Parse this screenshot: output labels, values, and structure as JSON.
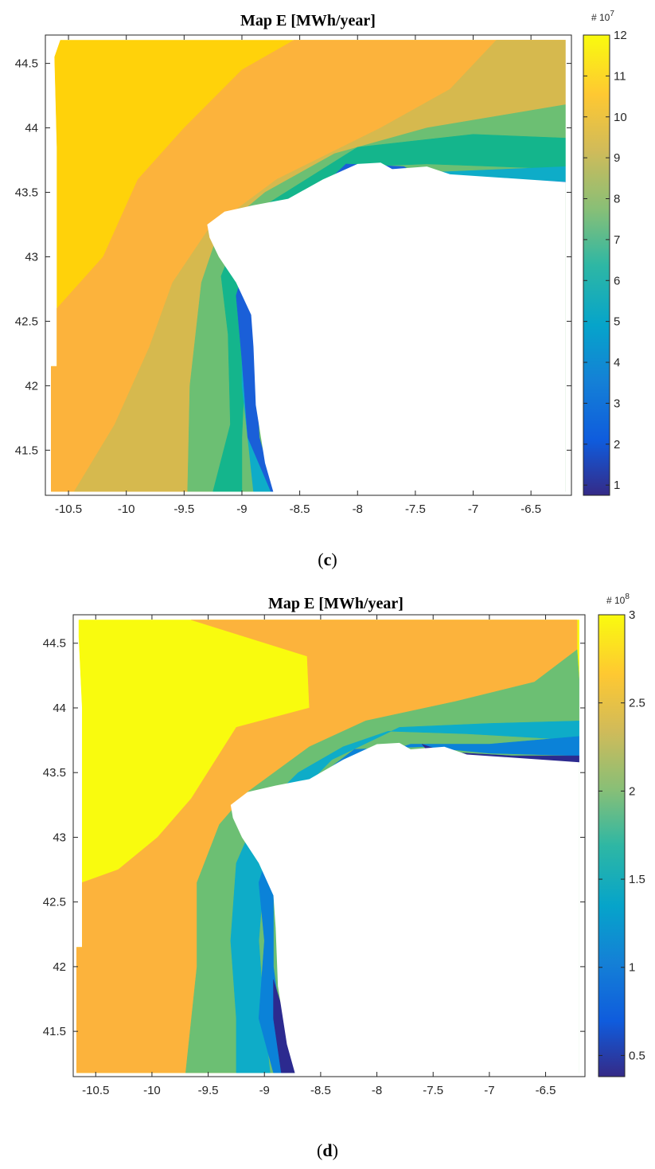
{
  "chart_data": [
    {
      "type": "heatmap",
      "title": "Map E [MWh/year]",
      "caption": "c",
      "xlim": [
        -10.7,
        -6.15
      ],
      "ylim": [
        41.15,
        44.72
      ],
      "xticks": [
        -10.5,
        -10,
        -9.5,
        -9,
        -8.5,
        -8,
        -7.5,
        -7,
        -6.5
      ],
      "yticks": [
        41.5,
        42,
        42.5,
        43,
        43.5,
        44,
        44.5
      ],
      "colorbar": {
        "range": [
          0.75,
          12
        ],
        "ticks": [
          1,
          2,
          3,
          4,
          5,
          6,
          7,
          8,
          9,
          10,
          11,
          12
        ],
        "tick_labels": [
          "1",
          "2",
          "3",
          "4",
          "5",
          "6",
          "7",
          "8",
          "9",
          "10",
          "11",
          "12"
        ],
        "exponent_label": "# 10",
        "exponent": "7",
        "colormap": "parula"
      },
      "contour_levels": [
        {
          "label": "Yellow",
          "range": [
            11,
            12
          ]
        },
        {
          "label": "Orange",
          "range": [
            9.5,
            11
          ]
        },
        {
          "label": "Olive",
          "range": [
            8.5,
            9.5
          ]
        },
        {
          "label": "Green",
          "range": [
            7.5,
            8.5
          ]
        },
        {
          "label": "Teal",
          "range": [
            6,
            7.5
          ]
        },
        {
          "label": "Cyan",
          "range": [
            4.5,
            6
          ]
        },
        {
          "label": "Blue",
          "range": [
            2,
            4.5
          ]
        }
      ]
    },
    {
      "type": "heatmap",
      "title": "Map E [MWh/year]",
      "caption": "d",
      "xlim": [
        -10.7,
        -6.15
      ],
      "ylim": [
        41.15,
        44.72
      ],
      "xticks": [
        -10.5,
        -10,
        -9.5,
        -9,
        -8.5,
        -8,
        -7.5,
        -7,
        -6.5
      ],
      "yticks": [
        41.5,
        42,
        42.5,
        43,
        43.5,
        44,
        44.5
      ],
      "colorbar": {
        "range": [
          0.38,
          3
        ],
        "ticks": [
          0.5,
          1,
          1.5,
          2,
          2.5,
          3
        ],
        "tick_labels": [
          "0.5",
          "1",
          "1.5",
          "2",
          "2.5",
          "3"
        ],
        "exponent_label": "# 10",
        "exponent": "8",
        "colormap": "parula"
      },
      "contour_levels": [
        {
          "label": "Yellow",
          "range": [
            2.75,
            3
          ]
        },
        {
          "label": "Orange",
          "range": [
            2.25,
            2.75
          ]
        },
        {
          "label": "Green",
          "range": [
            1.75,
            2.25
          ]
        },
        {
          "label": "Cyan",
          "range": [
            1.25,
            1.75
          ]
        },
        {
          "label": "Blue",
          "range": [
            0.75,
            1.25
          ]
        },
        {
          "label": "Dark blue",
          "range": [
            0.38,
            0.75
          ]
        }
      ]
    }
  ],
  "colors": {
    "yellow": "#ffd20a",
    "yellow_bright": "#f9fb0e",
    "orange": "#fcb33c",
    "olive": "#d6b94e",
    "green": "#6cbf73",
    "teal": "#14b58c",
    "cyan": "#0eacc8",
    "blue": "#0b82d8",
    "dark_blue": "#2c2a8f",
    "mid_blue": "#1a5fd8"
  }
}
